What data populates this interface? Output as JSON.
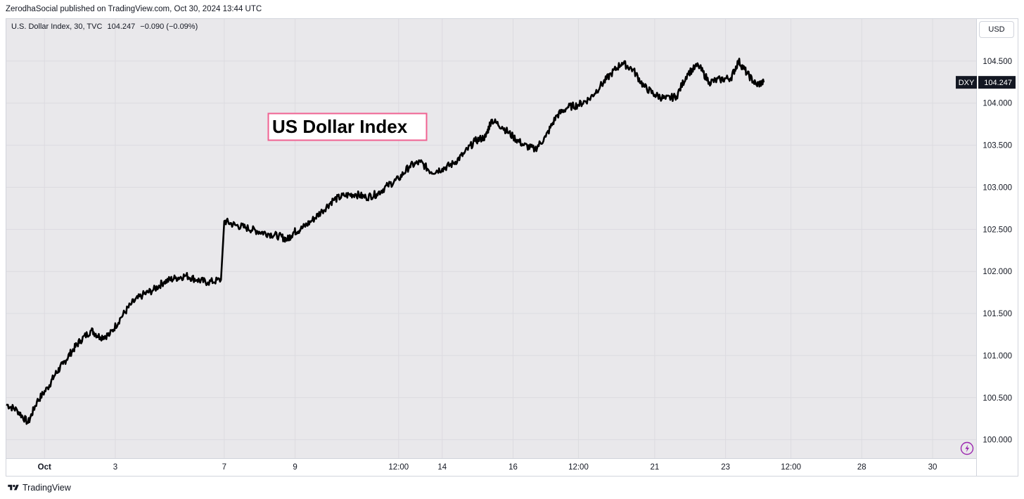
{
  "header": {
    "published_text": "ZerodhaSocial published on TradingView.com, Oct 30, 2024 13:44 UTC"
  },
  "legend": {
    "symbol": "U.S. Dollar Index, 30, TVC",
    "last": "104.247",
    "change": "−0.090 (−0.09%)"
  },
  "currency_button": "USD",
  "price_label": {
    "ticker": "DXY",
    "value": "104.247",
    "bg_color": "#131722"
  },
  "annotation": {
    "text": "US Dollar Index",
    "border_color": "#f06292"
  },
  "footer": {
    "brand": "TradingView"
  },
  "colors": {
    "plot_bg": "#e9e8eb",
    "line": "#000000",
    "grid": "#dcdbe0",
    "lightning": "#9c27b0"
  },
  "chart_data": {
    "type": "line",
    "title": "",
    "xlabel": "",
    "ylabel": "",
    "series": [
      {
        "name": "",
        "points": [
          [
            0.0,
            100.42
          ],
          [
            0.1,
            100.35
          ],
          [
            0.2,
            100.2
          ],
          [
            0.28,
            100.45
          ],
          [
            0.38,
            100.62
          ],
          [
            0.45,
            100.78
          ],
          [
            0.52,
            100.9
          ],
          [
            0.6,
            101.05
          ],
          [
            0.68,
            101.18
          ],
          [
            0.78,
            101.3
          ],
          [
            0.86,
            101.22
          ],
          [
            0.95,
            101.25
          ],
          [
            1.05,
            101.45
          ],
          [
            1.15,
            101.62
          ],
          [
            1.25,
            101.72
          ],
          [
            1.35,
            101.78
          ],
          [
            1.45,
            101.88
          ],
          [
            1.55,
            101.92
          ],
          [
            1.65,
            101.95
          ],
          [
            1.75,
            101.9
          ],
          [
            1.85,
            101.87
          ],
          [
            1.97,
            101.9
          ],
          [
            2.0,
            102.6
          ],
          [
            2.1,
            102.55
          ],
          [
            2.2,
            102.52
          ],
          [
            2.3,
            102.48
          ],
          [
            2.4,
            102.45
          ],
          [
            2.5,
            102.42
          ],
          [
            2.58,
            102.38
          ],
          [
            2.64,
            102.47
          ],
          [
            2.7,
            102.5
          ],
          [
            2.8,
            102.6
          ],
          [
            2.9,
            102.72
          ],
          [
            3.0,
            102.85
          ],
          [
            3.1,
            102.9
          ],
          [
            3.2,
            102.92
          ],
          [
            3.3,
            102.88
          ],
          [
            3.4,
            102.92
          ],
          [
            3.5,
            103.02
          ],
          [
            3.6,
            103.1
          ],
          [
            3.7,
            103.25
          ],
          [
            3.8,
            103.3
          ],
          [
            3.9,
            103.18
          ],
          [
            4.0,
            103.22
          ],
          [
            4.1,
            103.28
          ],
          [
            4.2,
            103.4
          ],
          [
            4.3,
            103.55
          ],
          [
            4.4,
            103.6
          ],
          [
            4.45,
            103.8
          ],
          [
            4.55,
            103.72
          ],
          [
            4.65,
            103.6
          ],
          [
            4.75,
            103.5
          ],
          [
            4.85,
            103.45
          ],
          [
            4.95,
            103.6
          ],
          [
            5.05,
            103.85
          ],
          [
            5.15,
            103.95
          ],
          [
            5.25,
            103.98
          ],
          [
            5.35,
            104.05
          ],
          [
            5.45,
            104.2
          ],
          [
            5.55,
            104.35
          ],
          [
            5.65,
            104.48
          ],
          [
            5.75,
            104.4
          ],
          [
            5.85,
            104.2
          ],
          [
            5.95,
            104.1
          ],
          [
            6.05,
            104.05
          ],
          [
            6.15,
            104.08
          ],
          [
            6.25,
            104.35
          ],
          [
            6.35,
            104.45
          ],
          [
            6.45,
            104.25
          ],
          [
            6.55,
            104.28
          ],
          [
            6.65,
            104.3
          ],
          [
            6.72,
            104.5
          ],
          [
            6.8,
            104.35
          ],
          [
            6.88,
            104.22
          ],
          [
            6.95,
            104.247
          ]
        ]
      }
    ],
    "x_ticks": [
      {
        "x": 0.35,
        "label": "Oct"
      },
      {
        "x": 1.0,
        "label": "3"
      },
      {
        "x": 2.0,
        "label": "7"
      },
      {
        "x": 2.65,
        "label": "9"
      },
      {
        "x": 3.6,
        "label": "12:00"
      },
      {
        "x": 4.0,
        "label": "14"
      },
      {
        "x": 4.65,
        "label": "16"
      },
      {
        "x": 5.25,
        "label": "12:00"
      },
      {
        "x": 5.95,
        "label": "21"
      },
      {
        "x": 6.6,
        "label": "23"
      },
      {
        "x": 7.2,
        "label": "12:00"
      },
      {
        "x": 7.85,
        "label": "28"
      },
      {
        "x": 8.5,
        "label": "30"
      }
    ],
    "y_ticks": [
      100.0,
      100.5,
      101.0,
      101.5,
      102.0,
      102.5,
      103.0,
      103.5,
      104.0,
      104.5
    ],
    "y_tick_labels": [
      "100.000",
      "100.500",
      "101.000",
      "101.500",
      "102.000",
      "102.500",
      "103.000",
      "103.500",
      "104.000",
      "104.500"
    ],
    "xlim": [
      0,
      8.9
    ],
    "ylim": [
      99.78,
      105.0
    ],
    "grid": true,
    "y_axis_position": "right"
  }
}
